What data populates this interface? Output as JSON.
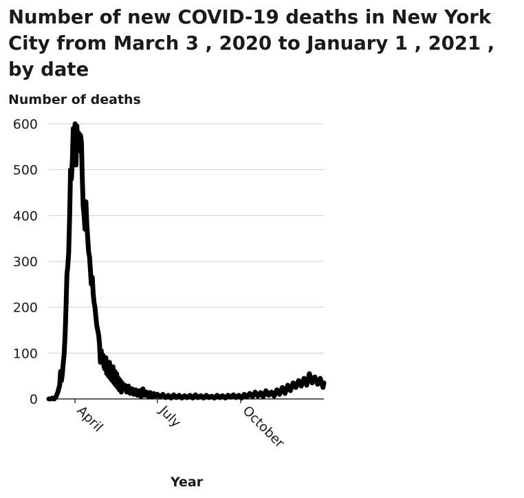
{
  "chart_data": {
    "type": "line",
    "title": "Number of new COVID-19 deaths in New York City from March 3 , 2020 to January 1 , 2021 , by date",
    "ylabel": "Number of deaths",
    "xlabel": "Year",
    "xlim": [
      "2020-03-03",
      "2021-01-01"
    ],
    "ylim": [
      0,
      600
    ],
    "yticks": [
      0,
      100,
      200,
      300,
      400,
      500,
      600
    ],
    "xticks": [
      {
        "label": "April",
        "date": "2020-04-01"
      },
      {
        "label": "July",
        "date": "2020-07-01"
      },
      {
        "label": "October",
        "date": "2020-10-01"
      }
    ],
    "grid": "horizontal",
    "line_color": "#000000",
    "points": [
      [
        "2020-03-03",
        0
      ],
      [
        "2020-03-05",
        0
      ],
      [
        "2020-03-07",
        2
      ],
      [
        "2020-03-09",
        0
      ],
      [
        "2020-03-11",
        5
      ],
      [
        "2020-03-13",
        15
      ],
      [
        "2020-03-15",
        30
      ],
      [
        "2020-03-16",
        60
      ],
      [
        "2020-03-17",
        40
      ],
      [
        "2020-03-18",
        55
      ],
      [
        "2020-03-19",
        80
      ],
      [
        "2020-03-20",
        100
      ],
      [
        "2020-03-21",
        140
      ],
      [
        "2020-03-22",
        200
      ],
      [
        "2020-03-23",
        270
      ],
      [
        "2020-03-24",
        290
      ],
      [
        "2020-03-25",
        320
      ],
      [
        "2020-03-26",
        400
      ],
      [
        "2020-03-27",
        500
      ],
      [
        "2020-03-28",
        480
      ],
      [
        "2020-03-29",
        520
      ],
      [
        "2020-03-30",
        590
      ],
      [
        "2020-03-31",
        560
      ],
      [
        "2020-04-01",
        600
      ],
      [
        "2020-04-02",
        510
      ],
      [
        "2020-04-03",
        595
      ],
      [
        "2020-04-04",
        540
      ],
      [
        "2020-04-05",
        580
      ],
      [
        "2020-04-06",
        545
      ],
      [
        "2020-04-07",
        575
      ],
      [
        "2020-04-08",
        560
      ],
      [
        "2020-04-09",
        480
      ],
      [
        "2020-04-10",
        420
      ],
      [
        "2020-04-11",
        400
      ],
      [
        "2020-04-12",
        370
      ],
      [
        "2020-04-13",
        430
      ],
      [
        "2020-04-14",
        380
      ],
      [
        "2020-04-15",
        350
      ],
      [
        "2020-04-16",
        320
      ],
      [
        "2020-04-17",
        310
      ],
      [
        "2020-04-18",
        280
      ],
      [
        "2020-04-19",
        250
      ],
      [
        "2020-04-20",
        265
      ],
      [
        "2020-04-21",
        230
      ],
      [
        "2020-04-22",
        210
      ],
      [
        "2020-04-23",
        200
      ],
      [
        "2020-04-24",
        180
      ],
      [
        "2020-04-25",
        160
      ],
      [
        "2020-04-26",
        150
      ],
      [
        "2020-04-27",
        140
      ],
      [
        "2020-04-28",
        120
      ],
      [
        "2020-04-29",
        80
      ],
      [
        "2020-04-30",
        105
      ],
      [
        "2020-05-01",
        85
      ],
      [
        "2020-05-02",
        95
      ],
      [
        "2020-05-03",
        70
      ],
      [
        "2020-05-04",
        65
      ],
      [
        "2020-05-05",
        90
      ],
      [
        "2020-05-06",
        55
      ],
      [
        "2020-05-07",
        75
      ],
      [
        "2020-05-08",
        50
      ],
      [
        "2020-05-09",
        80
      ],
      [
        "2020-05-10",
        45
      ],
      [
        "2020-05-11",
        65
      ],
      [
        "2020-05-12",
        40
      ],
      [
        "2020-05-13",
        70
      ],
      [
        "2020-05-14",
        35
      ],
      [
        "2020-05-15",
        60
      ],
      [
        "2020-05-16",
        30
      ],
      [
        "2020-05-17",
        55
      ],
      [
        "2020-05-18",
        25
      ],
      [
        "2020-05-19",
        45
      ],
      [
        "2020-05-20",
        20
      ],
      [
        "2020-05-21",
        40
      ],
      [
        "2020-05-22",
        15
      ],
      [
        "2020-05-23",
        35
      ],
      [
        "2020-05-24",
        25
      ],
      [
        "2020-05-26",
        30
      ],
      [
        "2020-05-28",
        15
      ],
      [
        "2020-05-30",
        28
      ],
      [
        "2020-06-01",
        12
      ],
      [
        "2020-06-03",
        22
      ],
      [
        "2020-06-05",
        10
      ],
      [
        "2020-06-07",
        20
      ],
      [
        "2020-06-09",
        8
      ],
      [
        "2020-06-11",
        18
      ],
      [
        "2020-06-13",
        5
      ],
      [
        "2020-06-15",
        22
      ],
      [
        "2020-06-17",
        8
      ],
      [
        "2020-06-19",
        15
      ],
      [
        "2020-06-21",
        5
      ],
      [
        "2020-06-23",
        14
      ],
      [
        "2020-06-25",
        4
      ],
      [
        "2020-06-27",
        12
      ],
      [
        "2020-06-29",
        6
      ],
      [
        "2020-07-01",
        10
      ],
      [
        "2020-07-04",
        4
      ],
      [
        "2020-07-07",
        10
      ],
      [
        "2020-07-10",
        3
      ],
      [
        "2020-07-13",
        8
      ],
      [
        "2020-07-16",
        2
      ],
      [
        "2020-07-19",
        9
      ],
      [
        "2020-07-22",
        3
      ],
      [
        "2020-07-25",
        8
      ],
      [
        "2020-07-28",
        2
      ],
      [
        "2020-07-31",
        7
      ],
      [
        "2020-08-03",
        3
      ],
      [
        "2020-08-06",
        8
      ],
      [
        "2020-08-09",
        2
      ],
      [
        "2020-08-12",
        9
      ],
      [
        "2020-08-15",
        3
      ],
      [
        "2020-08-18",
        7
      ],
      [
        "2020-08-21",
        2
      ],
      [
        "2020-08-24",
        8
      ],
      [
        "2020-08-27",
        3
      ],
      [
        "2020-08-30",
        6
      ],
      [
        "2020-09-02",
        2
      ],
      [
        "2020-09-05",
        8
      ],
      [
        "2020-09-08",
        3
      ],
      [
        "2020-09-11",
        7
      ],
      [
        "2020-09-14",
        2
      ],
      [
        "2020-09-17",
        8
      ],
      [
        "2020-09-20",
        4
      ],
      [
        "2020-09-23",
        9
      ],
      [
        "2020-09-26",
        3
      ],
      [
        "2020-09-29",
        8
      ],
      [
        "2020-10-02",
        2
      ],
      [
        "2020-10-05",
        10
      ],
      [
        "2020-10-08",
        4
      ],
      [
        "2020-10-11",
        12
      ],
      [
        "2020-10-14",
        5
      ],
      [
        "2020-10-17",
        15
      ],
      [
        "2020-10-20",
        6
      ],
      [
        "2020-10-23",
        14
      ],
      [
        "2020-10-26",
        5
      ],
      [
        "2020-10-29",
        18
      ],
      [
        "2020-11-01",
        8
      ],
      [
        "2020-11-04",
        15
      ],
      [
        "2020-11-07",
        6
      ],
      [
        "2020-11-10",
        20
      ],
      [
        "2020-11-13",
        10
      ],
      [
        "2020-11-16",
        25
      ],
      [
        "2020-11-19",
        12
      ],
      [
        "2020-11-22",
        30
      ],
      [
        "2020-11-25",
        18
      ],
      [
        "2020-11-28",
        35
      ],
      [
        "2020-12-01",
        25
      ],
      [
        "2020-12-04",
        40
      ],
      [
        "2020-12-07",
        28
      ],
      [
        "2020-12-10",
        45
      ],
      [
        "2020-12-13",
        30
      ],
      [
        "2020-12-16",
        55
      ],
      [
        "2020-12-19",
        35
      ],
      [
        "2020-12-22",
        48
      ],
      [
        "2020-12-25",
        32
      ],
      [
        "2020-12-28",
        45
      ],
      [
        "2020-12-31",
        25
      ],
      [
        "2021-01-01",
        35
      ]
    ]
  }
}
